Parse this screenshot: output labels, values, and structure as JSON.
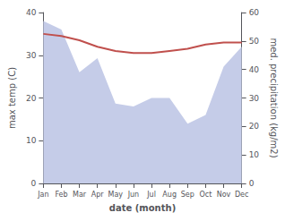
{
  "chart_data": {
    "type": "line",
    "xlabel": "date (month)",
    "ylabel": "max temp (C)",
    "y2label": "med. precipitation (kg/m2)",
    "categories": [
      "Jan",
      "Feb",
      "Mar",
      "Apr",
      "May",
      "Jun",
      "Jul",
      "Aug",
      "Sep",
      "Oct",
      "Nov",
      "Dec"
    ],
    "series": [
      {
        "type": "area",
        "axis": "y2",
        "color": "#c5cce8",
        "values": [
          57.0,
          54.0,
          39.0,
          44.0,
          28.0,
          27.0,
          30.0,
          30.0,
          21.0,
          24.0,
          41.0,
          48.0
        ]
      },
      {
        "type": "line",
        "color": "#c0504d",
        "values": [
          35.0,
          34.5,
          33.5,
          32.0,
          31.0,
          30.5,
          30.5,
          31.0,
          31.5,
          32.5,
          33.0,
          33.0
        ]
      }
    ],
    "ylim": [
      0,
      40
    ],
    "yticks": [
      0,
      10,
      20,
      30,
      40
    ],
    "y2lim": [
      0,
      60
    ],
    "y2ticks": [
      0,
      10,
      20,
      30,
      40,
      50,
      60
    ],
    "grid": false
  }
}
